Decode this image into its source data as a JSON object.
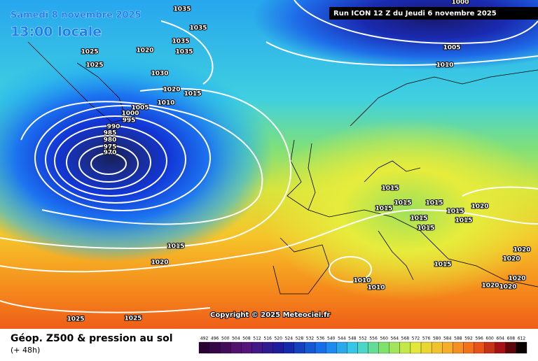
{
  "header": {
    "date": "Samedi 8 novembre 2025",
    "time": "13:00 locale",
    "run": "Run ICON 12 Z du Jeudi 6 novembre 2025"
  },
  "copyright": "Copyright © 2025 Meteociel.fr",
  "footer": {
    "title": "Géop. Z500 & pression au sol",
    "lead": "(+ 48h)"
  },
  "isobar_labels": [
    "1035",
    "1025",
    "1020",
    "1025",
    "1035",
    "1035",
    "1035",
    "1030",
    "1020",
    "1015",
    "1010",
    "1005",
    "1000",
    "995",
    "990",
    "985",
    "980",
    "975",
    "970",
    "1015",
    "1020",
    "1025",
    "1025",
    "1000",
    "1005",
    "1010",
    "1015",
    "1015",
    "1015",
    "1015",
    "1015",
    "1015",
    "1020",
    "1015",
    "1015",
    "1015",
    "1010",
    "1010",
    "1020",
    "1020",
    "1020",
    "1020",
    "1020"
  ],
  "scale": [
    492,
    496,
    500,
    504,
    508,
    512,
    516,
    520,
    524,
    528,
    532,
    536,
    540,
    544,
    548,
    552,
    556,
    560,
    564,
    568,
    572,
    576,
    580,
    584,
    588,
    592,
    596,
    600,
    604,
    608,
    612
  ]
}
